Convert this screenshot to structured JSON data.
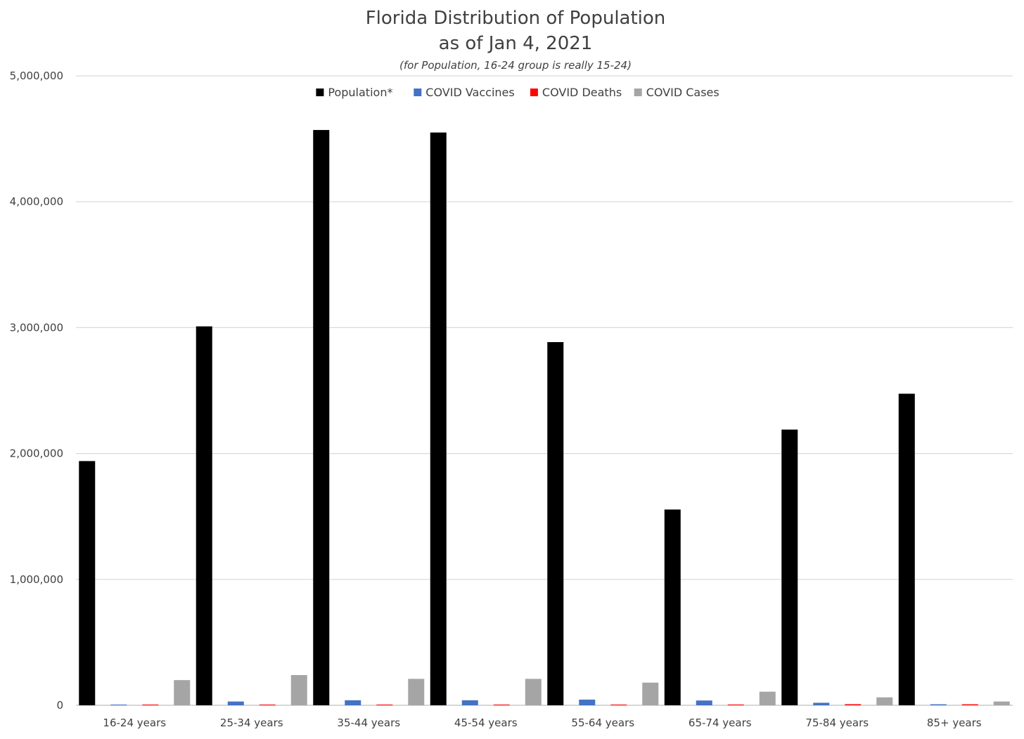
{
  "chart_data": {
    "type": "bar",
    "title": "Florida Distribution of Population",
    "subtitle": "as of Jan 4, 2021",
    "note": "(for Population, 16-24 group is really 15-24)",
    "ylim": [
      0,
      5000000
    ],
    "y_ticks": [
      0,
      1000000,
      2000000,
      3000000,
      4000000,
      5000000
    ],
    "y_tick_labels": [
      "0",
      "1,000,000",
      "2,000,000",
      "3,000,000",
      "4,000,000",
      "5,000,000"
    ],
    "grid": true,
    "legend_position": "top-center",
    "categories": [
      "16-24 years",
      "25-34 years",
      "35-44 years",
      "45-54 years",
      "55-64 years",
      "65-74 years",
      "75-84 years",
      "85+ years"
    ],
    "series": [
      {
        "name": "Population*",
        "color": "#000000",
        "values": [
          1940000,
          3010000,
          4570000,
          4550000,
          2885000,
          1555000,
          2190000,
          2475000
        ]
      },
      {
        "name": "COVID Vaccines",
        "color": "#4472C4",
        "values": [
          2000,
          30000,
          40000,
          40000,
          45000,
          38000,
          20000,
          8000
        ]
      },
      {
        "name": "COVID Deaths",
        "color": "#FF0000",
        "values": [
          50,
          200,
          500,
          1300,
          3200,
          6000,
          8400,
          7700
        ]
      },
      {
        "name": "COVID Cases",
        "color": "#A5A5A5",
        "values": [
          200000,
          240000,
          210000,
          210000,
          180000,
          108000,
          63000,
          30000
        ]
      }
    ]
  }
}
